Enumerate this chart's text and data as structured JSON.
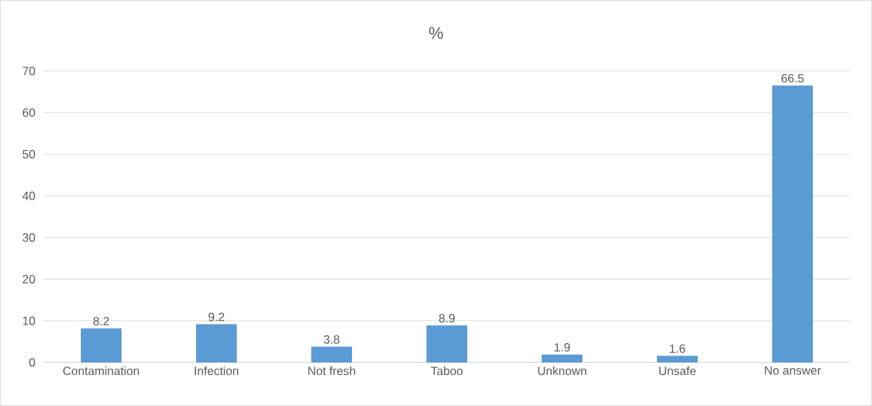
{
  "chart_data": {
    "type": "bar",
    "title": "%",
    "categories": [
      "Contamination",
      "Infection",
      "Not fresh",
      "Taboo",
      "Unknown",
      "Unsafe",
      "No answer"
    ],
    "values": [
      8.2,
      9.2,
      3.8,
      8.9,
      1.9,
      1.6,
      66.5
    ],
    "color": "#5b9bd5",
    "ylim": [
      0,
      70
    ],
    "yticks": [
      0,
      10,
      20,
      30,
      40,
      50,
      60,
      70
    ],
    "grid": "y",
    "data_labels": true
  }
}
